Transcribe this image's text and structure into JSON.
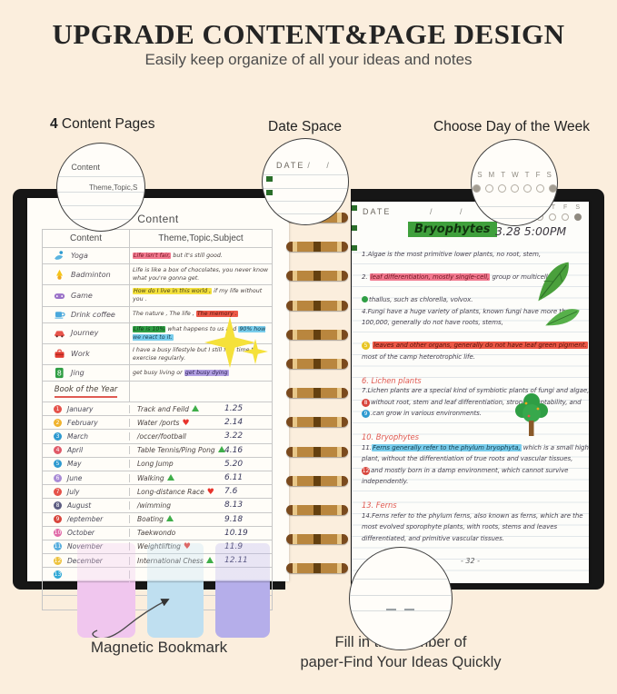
{
  "palette": {
    "background": "#fbeedd",
    "cover": "#161616",
    "spiral_gold": "#b9863e",
    "title_highlight_green": "#3fa03c",
    "section_header_red": "#e05a52",
    "hl_pink": "#f2798f",
    "hl_yellow": "#f4e13e",
    "hl_red": "#ec5847",
    "hl_green": "#2f9e44",
    "hl_blue": "#79cdec",
    "hl_purple": "#b2a0e2",
    "bookmark_pink": "#f0c6ee",
    "bookmark_blue": "#bfdff0",
    "bookmark_purple": "#b5aeea"
  },
  "header": {
    "title": "UPGRADE CONTENT&PAGE DESIGN",
    "subtitle": "Easily keep organize of all your ideas and notes"
  },
  "callouts": {
    "pages": {
      "number": "4",
      "label": " Content Pages",
      "circle": {
        "heading": "Content",
        "snippet": "Theme,Topic,S"
      }
    },
    "date": {
      "label": "Date Space",
      "circle": {
        "date_label": "DATE",
        "slashes": "/ /"
      }
    },
    "week": {
      "label": "Choose Day of the Week",
      "days": [
        "S",
        "M",
        "T",
        "W",
        "T",
        "F",
        "S"
      ],
      "dots": [
        "marked",
        "empty",
        "empty",
        "empty",
        "empty",
        "empty",
        "marked"
      ]
    }
  },
  "left_page": {
    "title": "Content",
    "columns": [
      "Content",
      "Theme,Topic,Subject"
    ],
    "activities": [
      {
        "icon": "yoga-icon",
        "label": "Yoga",
        "quote": [
          {
            "t": "Life isn't fair,",
            "hl": "pink"
          },
          {
            "t": " but it's still good."
          }
        ]
      },
      {
        "icon": "badminton-icon",
        "label": "Badminton",
        "quote": [
          {
            "t": "Life is like a box of chocolates, you never know what you're gonna get."
          }
        ]
      },
      {
        "icon": "gamepad-icon",
        "label": "Game",
        "quote": [
          {
            "t": "How do I live in this world ,",
            "hl": "yellow"
          },
          {
            "t": " if my life without you ."
          }
        ]
      },
      {
        "icon": "coffee-icon",
        "label": "Drink coffee",
        "quote": [
          {
            "t": "The nature , The life , "
          },
          {
            "t": "The memory .",
            "hl": "red"
          }
        ]
      },
      {
        "icon": "car-icon",
        "label": "Journey",
        "quote": [
          {
            "t": "Life is 10%",
            "hl": "green"
          },
          {
            "t": " what happens to us and "
          },
          {
            "t": "90% how we react to it.",
            "hl": "blue"
          }
        ]
      },
      {
        "icon": "briefcase-icon",
        "label": "Work",
        "quote": [
          {
            "t": "I have a busy lifestyle but I still find time to exercise regularly."
          }
        ]
      },
      {
        "icon": "eight-ball-icon",
        "label": "Jing",
        "quote": [
          {
            "t": "get busy living or "
          },
          {
            "t": "get busy dying",
            "hl": "purple"
          }
        ]
      }
    ],
    "book_of_year": "Book of the Year",
    "months": [
      {
        "num": "1",
        "color": "#e5524a",
        "month": "January",
        "activity": "Track and Feild",
        "mark": "triangle",
        "date": "1.25"
      },
      {
        "num": "2",
        "color": "#f0b32e",
        "month": "February",
        "activity": "Water /ports",
        "mark": "heart",
        "date": "2.14"
      },
      {
        "num": "3",
        "color": "#2e9ad0",
        "month": "March",
        "activity": "/occer/football",
        "mark": "",
        "date": "3.22"
      },
      {
        "num": "4",
        "color": "#e05a68",
        "month": "April",
        "activity": "Table Tennis/Ping Pong",
        "mark": "triangle",
        "date": "4.16"
      },
      {
        "num": "5",
        "color": "#2e9ad0",
        "month": "May",
        "activity": "Long Jump",
        "mark": "",
        "date": "5.20"
      },
      {
        "num": "6",
        "color": "#a98bd6",
        "month": "June",
        "activity": "Walking",
        "mark": "triangle",
        "date": "6.11"
      },
      {
        "num": "7",
        "color": "#e5524a",
        "month": "July",
        "activity": "Long-distance Race",
        "mark": "heart",
        "date": "7.6"
      },
      {
        "num": "8",
        "color": "#5c5c80",
        "month": "August",
        "activity": "/wimming",
        "mark": "",
        "date": "8.13"
      },
      {
        "num": "9",
        "color": "#d8453c",
        "month": "/eptember",
        "activity": "Boating",
        "mark": "triangle",
        "date": "9.18"
      },
      {
        "num": "10",
        "color": "#e06aa8",
        "month": "October",
        "activity": "Taekwondo",
        "mark": "",
        "date": "10.19"
      },
      {
        "num": "11",
        "color": "#57aede",
        "month": "November",
        "activity": "Weightlifting",
        "mark": "heart",
        "date": "11.9"
      },
      {
        "num": "12",
        "color": "#edc23c",
        "month": "December",
        "activity": "International Chess",
        "mark": "triangle",
        "date": "12.11"
      },
      {
        "num": "13",
        "color": "#2fa8d5",
        "month": "",
        "activity": "",
        "mark": "",
        "date": ""
      }
    ],
    "empty_rows": 2
  },
  "right_page": {
    "date_label": "DATE",
    "slashes": "/ /",
    "week_letters": [
      "T",
      "F",
      "S"
    ],
    "week_dots": [
      "empty",
      "empty",
      "empty",
      "filled"
    ],
    "title": "Bryophytes",
    "datetime": "3.28 5:00PM",
    "lines": [
      {
        "seg": [
          {
            "t": "1.Algae is the most primitive lower plants, no root, stem,"
          }
        ]
      },
      {
        "blank": true
      },
      {
        "seg": [
          {
            "t": "2. "
          },
          {
            "t": "leaf differentiation, mostly single-cell,",
            "hl": "pink"
          },
          {
            "t": " group or multicellular"
          }
        ]
      },
      {
        "blank": true
      },
      {
        "seg": [
          {
            "dot": true
          },
          {
            "t": "thallus, such as chlorella, volvox."
          }
        ]
      },
      {
        "seg": [
          {
            "t": "4.Fungi have a huge variety of plants, known fungi have more than"
          }
        ]
      },
      {
        "seg": [
          {
            "t": "100,000, generally do not have roots, stems,"
          }
        ]
      },
      {
        "blank": true
      },
      {
        "seg": [
          {
            "circle": "5",
            "color": "#e9c522"
          },
          {
            "t": " "
          },
          {
            "t": "leaves and other organs, generally do not have leaf green pigment.",
            "hl": "red"
          }
        ]
      },
      {
        "seg": [
          {
            "t": "most of the camp heterotrophic life."
          }
        ]
      },
      {
        "blank": true
      },
      {
        "hdr": true,
        "seg": [
          {
            "t": "6. Lichen plants"
          }
        ]
      },
      {
        "seg": [
          {
            "t": "7.Lichen plants are a special kind of symbiotic plants of fungi and algae,"
          }
        ]
      },
      {
        "seg": [
          {
            "circle": "8",
            "color": "#d8453c"
          },
          {
            "t": "without root, stem and leaf differentiation, strong adaptability, and"
          }
        ]
      },
      {
        "seg": [
          {
            "circle": "9",
            "color": "#2e9ad0"
          },
          {
            "t": ".can grow in various environments."
          }
        ]
      },
      {
        "blank": true
      },
      {
        "hdr": true,
        "seg": [
          {
            "t": "10. Bryophytes"
          }
        ]
      },
      {
        "seg": [
          {
            "t": "11."
          },
          {
            "t": "Ferns generally refer to the phylum bryophyta,",
            "hl": "blue"
          },
          {
            "t": " which is a small higher"
          }
        ]
      },
      {
        "seg": [
          {
            "t": "plant, without the differentiation of true roots and vascular tissues,"
          }
        ]
      },
      {
        "seg": [
          {
            "circle": "12",
            "color": "#d8453c"
          },
          {
            "t": "and mostly born in a damp environment, which cannot survive"
          }
        ]
      },
      {
        "seg": [
          {
            "t": "independently."
          }
        ]
      },
      {
        "blank": true
      },
      {
        "hdr": true,
        "seg": [
          {
            "t": "13. Ferns"
          }
        ]
      },
      {
        "seg": [
          {
            "t": "14.Ferns refer to the phylum ferns, also known as ferns, which are the"
          }
        ]
      },
      {
        "seg": [
          {
            "t": "most evolved sporophyte plants, with roots, stems and leaves"
          }
        ]
      },
      {
        "seg": [
          {
            "t": "differentiated, and primitive vascular tissues."
          }
        ]
      }
    ],
    "page_number": "- 32 -"
  },
  "footer": {
    "bookmark_label": "Magnetic Bookmark",
    "fill_line1": "Fill in the number of",
    "fill_line2": "paper-Find Your Ideas Quickly"
  }
}
